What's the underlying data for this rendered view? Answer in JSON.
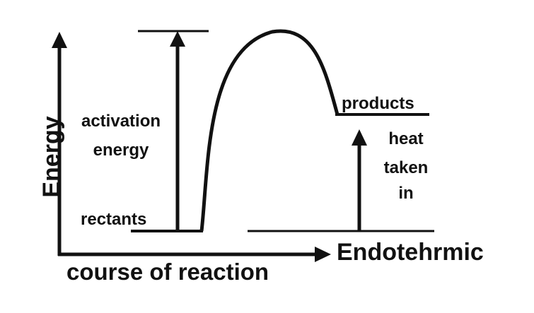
{
  "labels": {
    "y_axis": "Energy",
    "x_axis": "course of reaction",
    "reaction_type": "Endotehrmic",
    "reactants": "rectants",
    "products": "products",
    "activation_line1": "activation",
    "activation_line2": "energy",
    "heat_line1": "heat",
    "heat_line2": "taken",
    "heat_line3": "in"
  },
  "colors": {
    "ink": "#111111",
    "background": "#ffffff"
  }
}
